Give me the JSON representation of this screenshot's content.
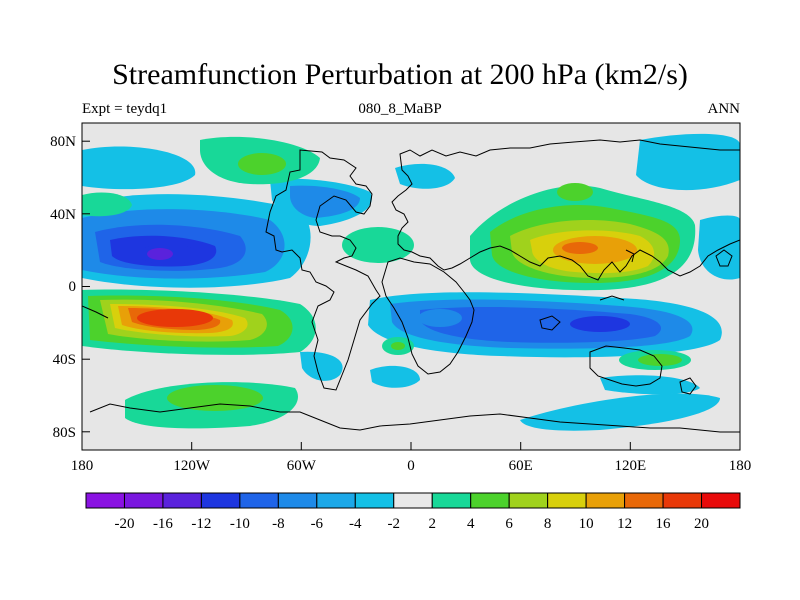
{
  "title": "Streamfunction Perturbation at 200 hPa (km2/s)",
  "left_subtitle": "Expt = teydq1",
  "center_subtitle": "080_8_MaBP",
  "right_subtitle": "ANN",
  "map": {
    "lon_ticks": [
      "180",
      "120W",
      "60W",
      "0",
      "60E",
      "120E",
      "180"
    ],
    "lat_ticks": [
      "80N",
      "40N",
      "0",
      "40S",
      "80S"
    ],
    "lon_range": [
      -180,
      180
    ],
    "lat_range": [
      -90,
      90
    ]
  },
  "colorbar": {
    "labels": [
      "-20",
      "-16",
      "-12",
      "-10",
      "-8",
      "-6",
      "-4",
      "-2",
      "2",
      "4",
      "6",
      "8",
      "10",
      "12",
      "16",
      "20"
    ],
    "colors": [
      "#8a12e2",
      "#7a17df",
      "#5a22dc",
      "#1e36e0",
      "#1f64e8",
      "#1e8ae8",
      "#1ca8e8",
      "#14c0e6",
      "#e8e8e8",
      "#18d898",
      "#4cd22c",
      "#a0d21c",
      "#d8d00c",
      "#e8a008",
      "#e86808",
      "#e83808",
      "#e80a0a"
    ]
  }
}
